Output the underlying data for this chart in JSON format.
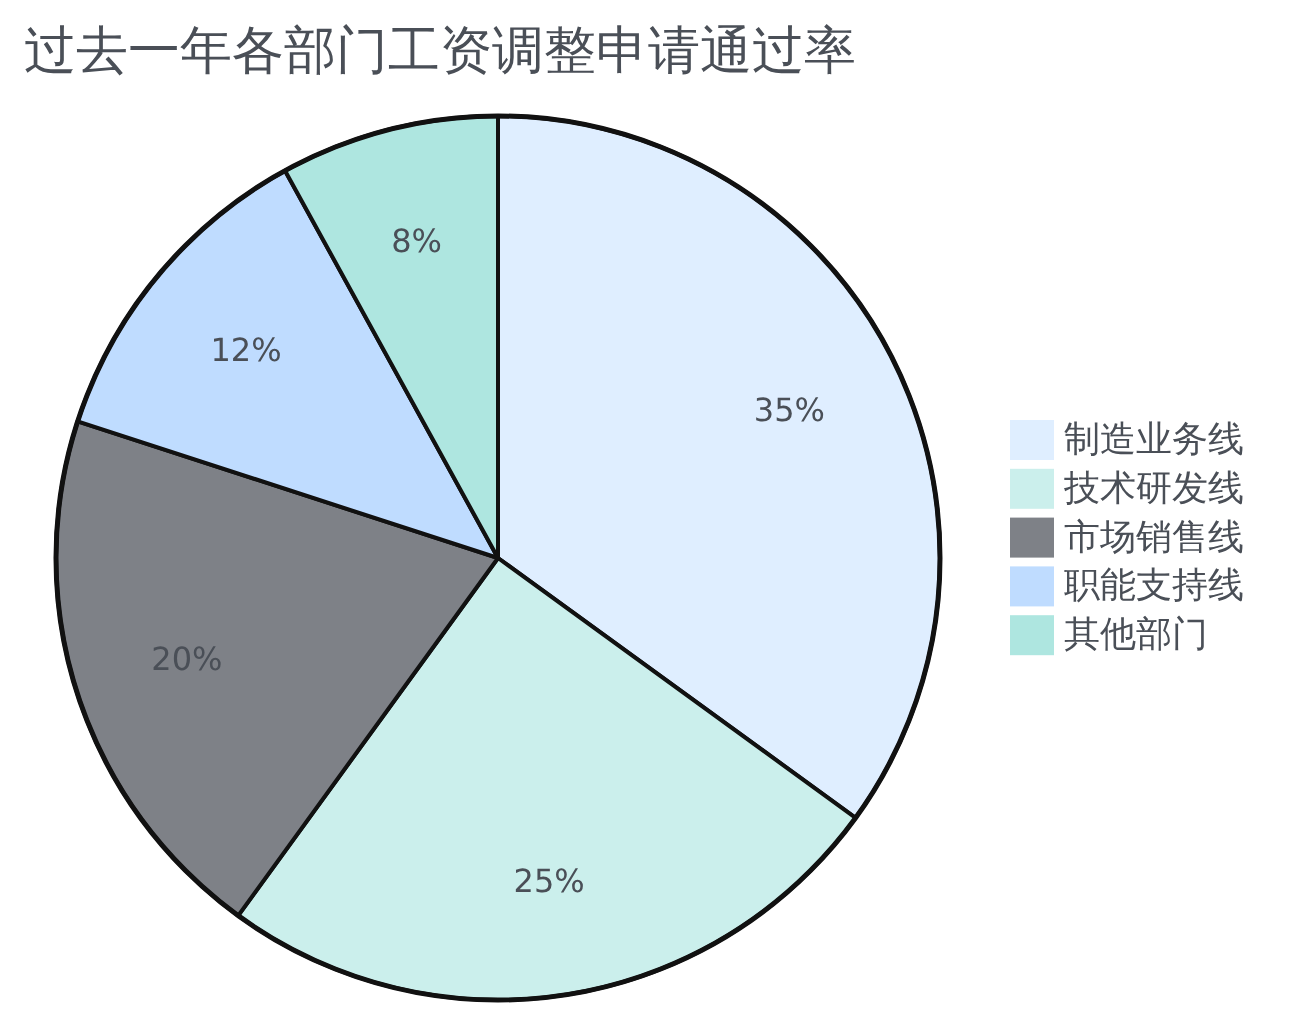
{
  "chart_data": {
    "type": "pie",
    "title": "过去一年各部门工资调整申请通过率",
    "categories": [
      "制造业务线",
      "技术研发线",
      "市场销售线",
      "职能支持线",
      "其他部门"
    ],
    "values": [
      35,
      25,
      20,
      12,
      8
    ],
    "value_labels": [
      "35%",
      "25%",
      "20%",
      "12%",
      "8%"
    ],
    "colors": [
      "#dfeeff",
      "#cbefec",
      "#7e8187",
      "#bfdcff",
      "#aee6e0"
    ],
    "legend": "right"
  }
}
